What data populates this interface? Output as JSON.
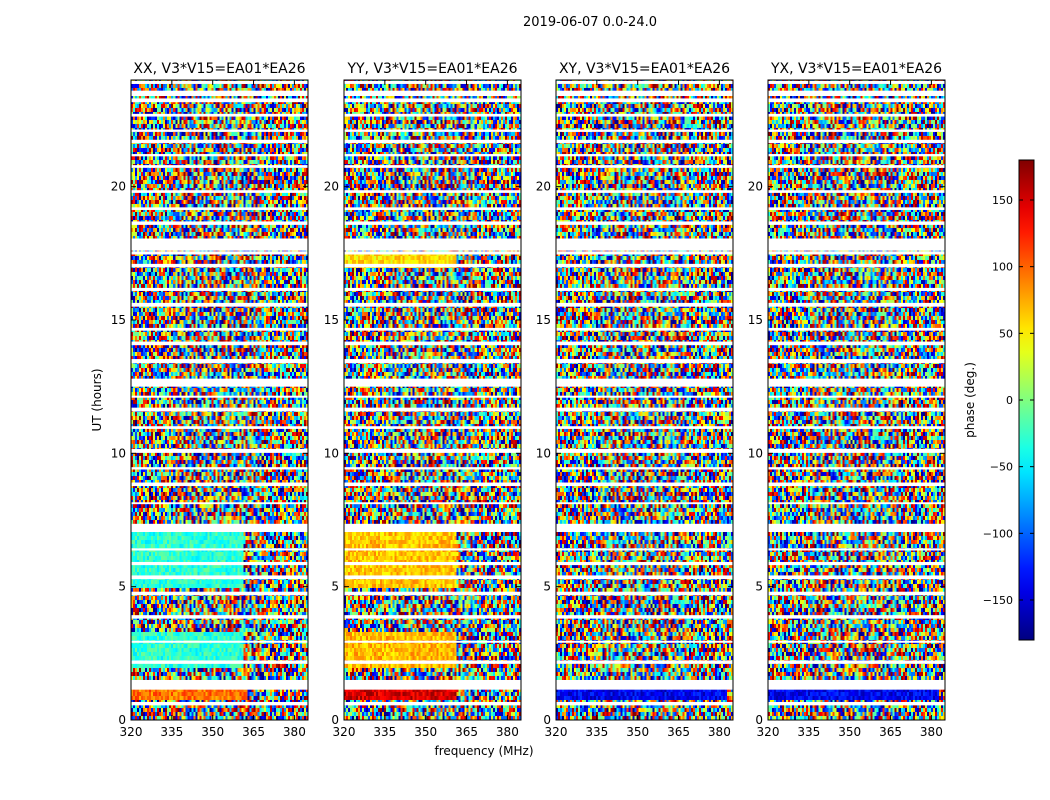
{
  "chart_data": {
    "type": "heatmap",
    "suptitle": "2019-06-07 0.0-24.0",
    "xlabel": "frequency (MHz)",
    "ylabel": "UT (hours)",
    "xlim": [
      320,
      385
    ],
    "ylim": [
      0,
      24
    ],
    "xticks": [
      320,
      335,
      350,
      365,
      380
    ],
    "yticks": [
      0,
      5,
      10,
      15,
      20
    ],
    "colorbar": {
      "label": "phase (deg.)",
      "range": [
        -180,
        180
      ],
      "ticks": [
        -150,
        -100,
        -50,
        0,
        50,
        100,
        150
      ],
      "ticklabels": [
        "−150",
        "−100",
        "−50",
        "0",
        "50",
        "100",
        "150"
      ],
      "colormap": "jet"
    },
    "panels": [
      {
        "title": "XX, V3*V15=EA01*EA26"
      },
      {
        "title": "YY, V3*V15=EA01*EA26"
      },
      {
        "title": "XY, V3*V15=EA01*EA26"
      },
      {
        "title": "YX, V3*V15=EA01*EA26"
      }
    ],
    "coherent_phase_bands": [
      {
        "panel": "XX",
        "ut": [
          5.0,
          7.0
        ],
        "freq": [
          320,
          361
        ],
        "phase_deg": -30
      },
      {
        "panel": "XX",
        "ut": [
          2.0,
          3.3
        ],
        "freq": [
          320,
          361
        ],
        "phase_deg": -30
      },
      {
        "panel": "XX",
        "ut": [
          0.7,
          1.2
        ],
        "freq": [
          320,
          363
        ],
        "phase_deg": 95
      },
      {
        "panel": "YY",
        "ut": [
          5.0,
          7.0
        ],
        "freq": [
          320,
          361
        ],
        "phase_deg": 65
      },
      {
        "panel": "YY",
        "ut": [
          2.0,
          3.3
        ],
        "freq": [
          320,
          361
        ],
        "phase_deg": 70
      },
      {
        "panel": "YY",
        "ut": [
          0.7,
          1.2
        ],
        "freq": [
          320,
          361
        ],
        "phase_deg": 150
      },
      {
        "panel": "YY",
        "ut": [
          17.0,
          17.6
        ],
        "freq": [
          320,
          361
        ],
        "phase_deg": 55
      },
      {
        "panel": "XY",
        "ut": [
          0.7,
          1.2
        ],
        "freq": [
          320,
          383
        ],
        "phase_deg": -140
      },
      {
        "panel": "YX",
        "ut": [
          0.7,
          1.2
        ],
        "freq": [
          320,
          383
        ],
        "phase_deg": -140
      }
    ]
  }
}
